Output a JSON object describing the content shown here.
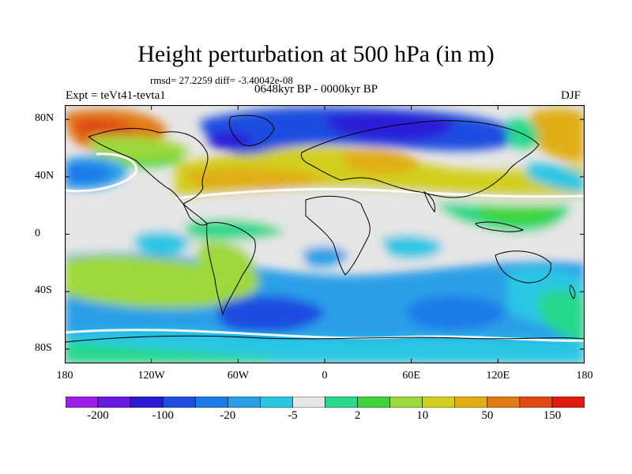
{
  "title": "Height perturbation at 500 hPa (in m)",
  "stats": "rmsd= 27.2259 diff= -3.40042e-08",
  "period": "0648kyr BP - 0000kyr BP",
  "experiment": "Expt = teVt41-tevta1",
  "season": "DJF",
  "lat_axis": {
    "ticks": [
      {
        "label": "80N",
        "value": 80
      },
      {
        "label": "40N",
        "value": 40
      },
      {
        "label": "0",
        "value": 0
      },
      {
        "label": "40S",
        "value": -40
      },
      {
        "label": "80S",
        "value": -80
      }
    ],
    "range": [
      -90,
      90
    ]
  },
  "lon_axis": {
    "ticks": [
      {
        "label": "180",
        "value": -180
      },
      {
        "label": "120W",
        "value": -120
      },
      {
        "label": "60W",
        "value": -60
      },
      {
        "label": "0",
        "value": 0
      },
      {
        "label": "60E",
        "value": 60
      },
      {
        "label": "120E",
        "value": 120
      },
      {
        "label": "180",
        "value": 180
      }
    ],
    "range": [
      -180,
      180
    ]
  },
  "colorbar": {
    "colors": [
      "#9c1ee8",
      "#6a19e0",
      "#2a1ad8",
      "#1f4ee0",
      "#1d7be8",
      "#2a9fe8",
      "#29c6e4",
      "#e6e6e6",
      "#28d88c",
      "#3fd53a",
      "#9ed83a",
      "#d2cf1e",
      "#e1ad14",
      "#e27a13",
      "#e04a12",
      "#e01b0f"
    ],
    "labels": [
      {
        "text": "-200",
        "boundary": 1
      },
      {
        "text": "-100",
        "boundary": 3
      },
      {
        "text": "-20",
        "boundary": 5
      },
      {
        "text": "-5",
        "boundary": 7
      },
      {
        "text": "2",
        "boundary": 9
      },
      {
        "text": "10",
        "boundary": 11
      },
      {
        "text": "50",
        "boundary": 13
      },
      {
        "text": "150",
        "boundary": 15
      }
    ]
  },
  "field_colors": {
    "purple": "#6a19e0",
    "blue": "#2a1ad8",
    "blue2": "#1f4ee0",
    "blue3": "#1d7be8",
    "blue4": "#2a9fe8",
    "cyan": "#29c6e4",
    "gray": "#e6e6e6",
    "teal": "#28d88c",
    "green": "#3fd53a",
    "lime": "#9ed83a",
    "yellow": "#d2cf1e",
    "orange": "#e1ad14",
    "orange2": "#e27a13",
    "red": "#e04a12"
  }
}
